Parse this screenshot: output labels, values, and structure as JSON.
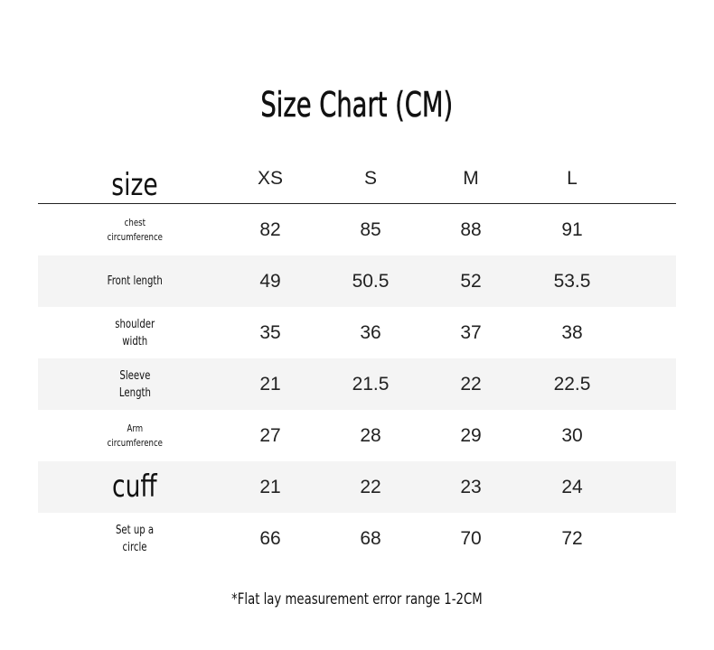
{
  "title": "Size Chart (CM)",
  "header": {
    "label": "size",
    "sizes": [
      "XS",
      "S",
      "M",
      "L"
    ]
  },
  "rows": [
    {
      "label_lines": [
        "chest",
        "circumference"
      ],
      "values": [
        "82",
        "85",
        "88",
        "91"
      ]
    },
    {
      "label_lines": [
        "Front length"
      ],
      "values": [
        "49",
        "50.5",
        "52",
        "53.5"
      ]
    },
    {
      "label_lines": [
        "shoulder",
        "width"
      ],
      "values": [
        "35",
        "36",
        "37",
        "38"
      ]
    },
    {
      "label_lines": [
        "Sleeve",
        "Length"
      ],
      "values": [
        "21",
        "21.5",
        "22",
        "22.5"
      ]
    },
    {
      "label_lines": [
        "Arm",
        "circumference"
      ],
      "values": [
        "27",
        "28",
        "29",
        "30"
      ]
    },
    {
      "label_lines": [
        "cuff"
      ],
      "values": [
        "21",
        "22",
        "23",
        "24"
      ]
    },
    {
      "label_lines": [
        "Set up a",
        "circle"
      ],
      "values": [
        "66",
        "68",
        "70",
        "72"
      ]
    }
  ],
  "note": "*Flat lay measurement error range 1-2CM",
  "colors": {
    "stripe": "#f4f4f4",
    "text": "#111111"
  }
}
